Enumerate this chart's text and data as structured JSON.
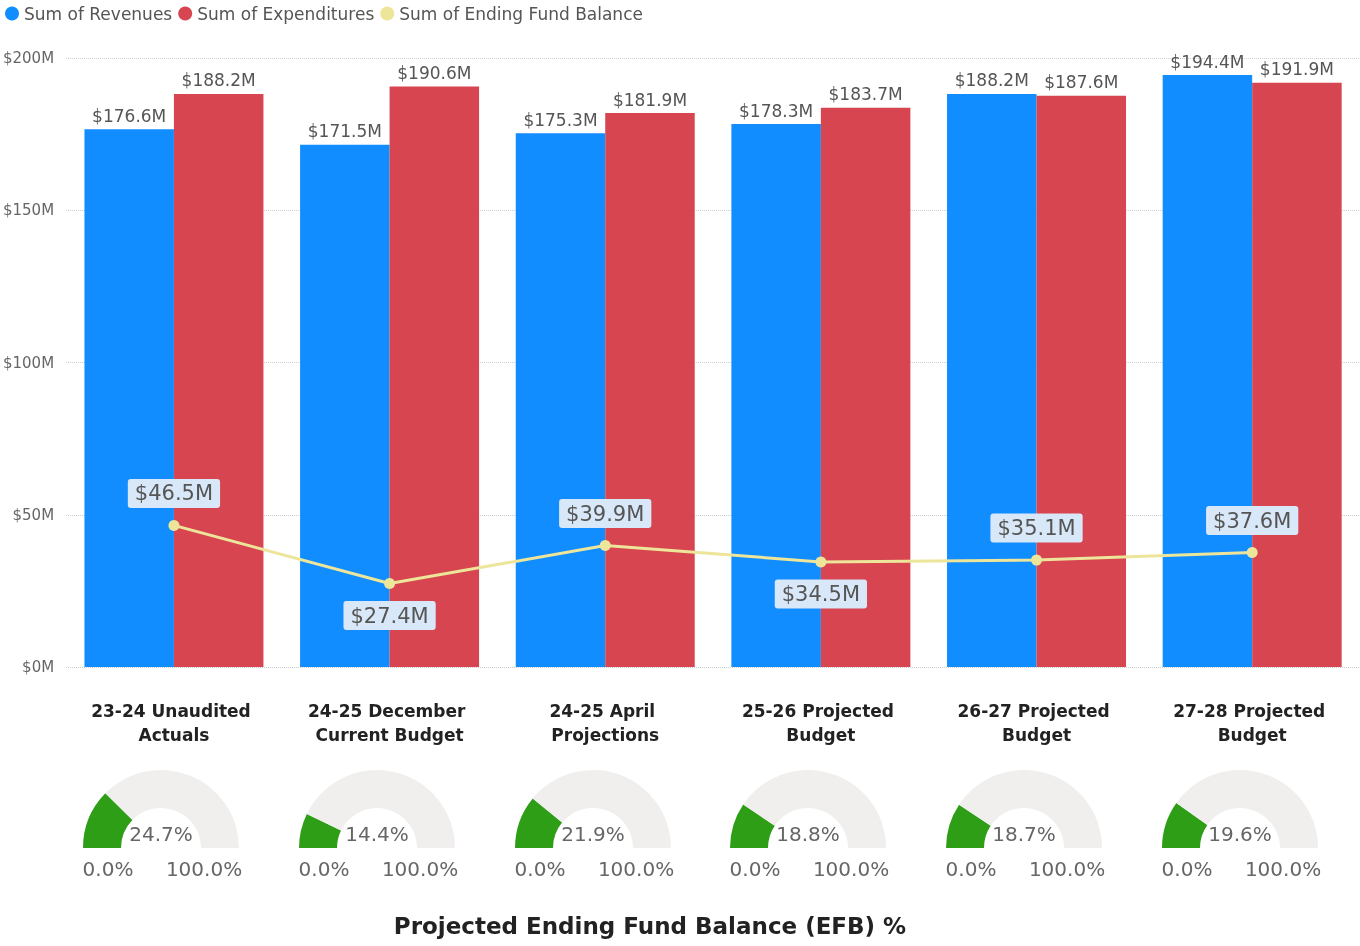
{
  "chart_data": [
    {
      "type": "bar",
      "categories": [
        "23-24 Unaudited Actuals",
        "24-25 December Current Budget",
        "24-25 April Projections",
        "25-26 Projected Budget",
        "26-27 Projected Budget",
        "27-28 Projected Budget"
      ],
      "series": [
        {
          "name": "Sum of Revenues",
          "color": "#118dff",
          "values": [
            176.6,
            171.5,
            175.3,
            178.3,
            188.2,
            194.4
          ],
          "value_labels": [
            "$176.6M",
            "$171.5M",
            "$175.3M",
            "$178.3M",
            "$188.2M",
            "$194.4M"
          ]
        },
        {
          "name": "Sum of Expenditures",
          "color": "#d64550",
          "values": [
            188.2,
            190.6,
            181.9,
            183.7,
            187.6,
            191.9
          ],
          "value_labels": [
            "$188.2M",
            "$190.6M",
            "$181.9M",
            "$183.7M",
            "$187.6M",
            "$191.9M"
          ]
        },
        {
          "name": "Sum of Ending Fund Balance",
          "type": "line",
          "color": "#ede59a",
          "values": [
            46.5,
            27.4,
            39.9,
            34.5,
            35.1,
            37.6
          ],
          "value_labels": [
            "$46.5M",
            "$27.4M",
            "$39.9M",
            "$34.5M",
            "$35.1M",
            "$37.6M"
          ]
        }
      ],
      "ylim": [
        0,
        200
      ],
      "yticks": [
        {
          "value": 0,
          "label": "$0M"
        },
        {
          "value": 50,
          "label": "$50M"
        },
        {
          "value": 100,
          "label": "$100M"
        },
        {
          "value": 150,
          "label": "$150M"
        },
        {
          "value": 200,
          "label": "$200M"
        }
      ],
      "grid": "y",
      "legend": "top left",
      "marker": "circle",
      "annotations": [
        "Projected Ending Fund Balance (EFB) %"
      ]
    },
    {
      "type": "donut",
      "categories": [
        null,
        null
      ],
      "values": [
        24.7,
        75.3
      ],
      "colors": [
        "#2f9e17",
        "#f0efed"
      ],
      "annotations": [
        "24.7%",
        "0.0%",
        "100.0%"
      ]
    },
    {
      "type": "donut",
      "categories": [
        null,
        null
      ],
      "values": [
        14.4,
        85.6
      ],
      "colors": [
        "#2f9e17",
        "#f0efed"
      ],
      "annotations": [
        "14.4%",
        "0.0%",
        "100.0%"
      ]
    },
    {
      "type": "donut",
      "categories": [
        null,
        null
      ],
      "values": [
        21.9,
        78.1
      ],
      "colors": [
        "#2f9e17",
        "#f0efed"
      ],
      "annotations": [
        "21.9%",
        "0.0%",
        "100.0%"
      ]
    },
    {
      "type": "donut",
      "categories": [
        null,
        null
      ],
      "values": [
        18.8,
        81.2
      ],
      "colors": [
        "#2f9e17",
        "#f0efed"
      ],
      "annotations": [
        "18.8%",
        "0.0%",
        "100.0%"
      ]
    },
    {
      "type": "donut",
      "categories": [
        null,
        null
      ],
      "values": [
        18.7,
        81.3
      ],
      "colors": [
        "#2f9e17",
        "#f0efed"
      ],
      "annotations": [
        "18.7%",
        "0.0%",
        "100.0%"
      ]
    },
    {
      "type": "donut",
      "categories": [
        null,
        null
      ],
      "values": [
        19.6,
        80.4
      ],
      "colors": [
        "#2f9e17",
        "#f0efed"
      ],
      "annotations": [
        "19.6%",
        "0.0%",
        "100.0%"
      ]
    }
  ]
}
